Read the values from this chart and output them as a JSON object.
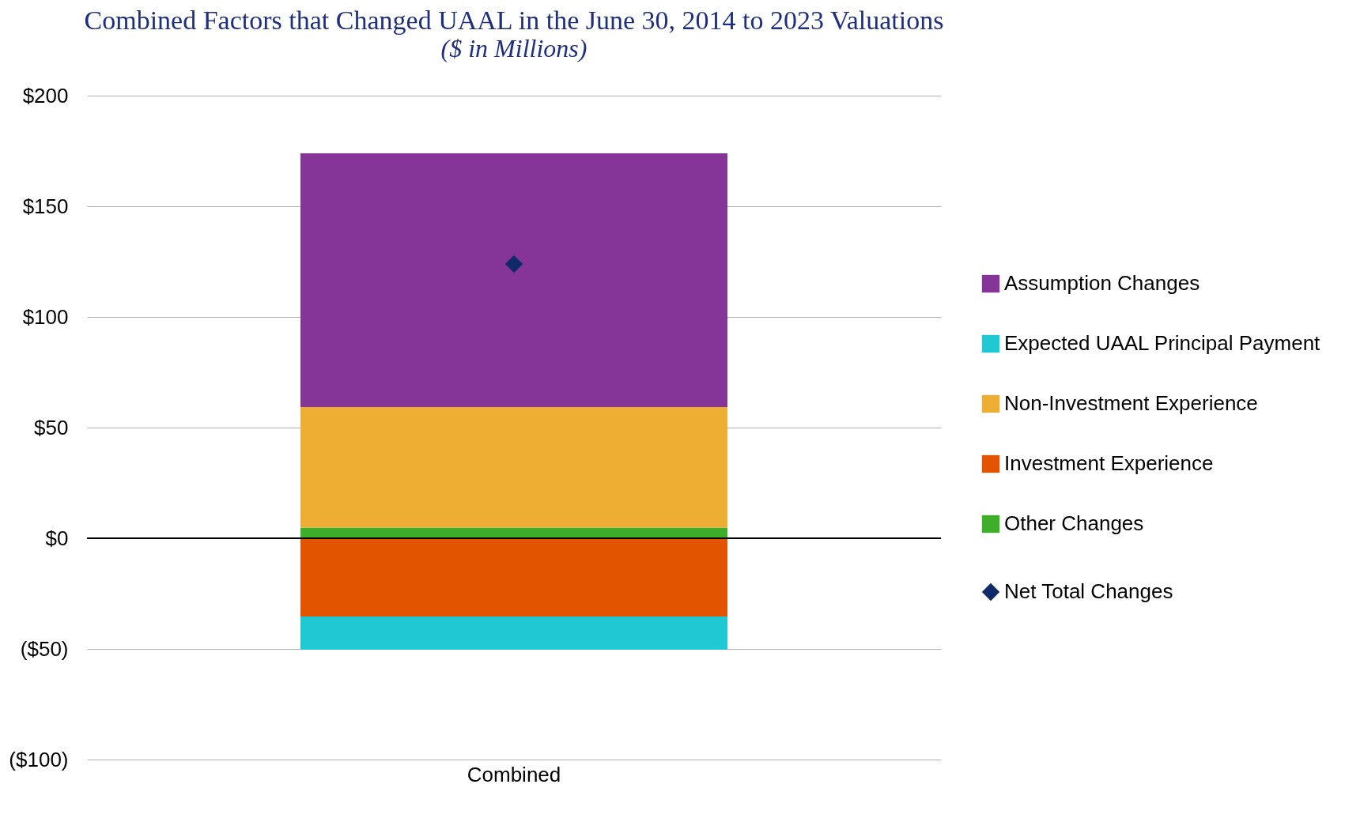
{
  "chart_data": {
    "type": "bar",
    "title": "Combined Factors that Changed UAAL in the June 30, 2014 to 2023 Valuations",
    "subtitle": "($ in Millions)",
    "categories": [
      "Combined"
    ],
    "stacked": true,
    "series": [
      {
        "name": "Other Changes",
        "color": "#3fae2a",
        "values": [
          4.8
        ]
      },
      {
        "name": "Investment Experience",
        "color": "#e35401",
        "values": [
          -35.4
        ]
      },
      {
        "name": "Non-Investment Experience",
        "color": "#edae33",
        "values": [
          54.5
        ]
      },
      {
        "name": "Expected UAAL Principal Payment",
        "color": "#1fc8d3",
        "values": [
          -15
        ]
      },
      {
        "name": "Assumption Changes",
        "color": "#843597",
        "values": [
          114.6
        ]
      },
      {
        "name": "Net Total Changes",
        "type": "line",
        "marker": "diamond",
        "color": "#0e2a68",
        "values": [
          123.9
        ]
      }
    ],
    "ylim": [
      -100,
      200
    ],
    "yticks": [
      {
        "value": -100,
        "label": "($100)"
      },
      {
        "value": -50,
        "label": "($50)"
      },
      {
        "value": 0,
        "label": "$0"
      },
      {
        "value": 50,
        "label": "$50"
      },
      {
        "value": 100,
        "label": "$100"
      },
      {
        "value": 150,
        "label": "$150"
      },
      {
        "value": 200,
        "label": "$200"
      }
    ],
    "grid": "y",
    "legend": "right",
    "ref_lines": [
      {
        "axis": "y",
        "value": 0,
        "color": "#000000"
      }
    ]
  }
}
